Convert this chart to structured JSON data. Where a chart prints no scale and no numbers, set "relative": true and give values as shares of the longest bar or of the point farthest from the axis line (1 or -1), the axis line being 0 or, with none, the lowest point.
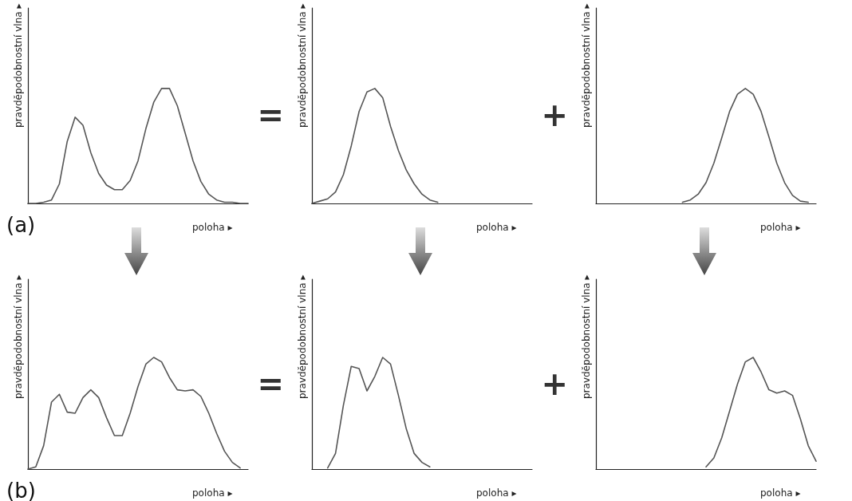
{
  "chart_data": [
    {
      "type": "line",
      "relative": true,
      "xlabel": "poloha ▸",
      "ylabel": "pravděpodobnostní vlna ▸",
      "annotations": [
        "=",
        "(a)"
      ],
      "grid": false,
      "marker": "none",
      "line_style": "solid",
      "categories": [
        null,
        null,
        null,
        null,
        null,
        null,
        null,
        null,
        null,
        null,
        null,
        null,
        null,
        null,
        null,
        null,
        null,
        null,
        null,
        null,
        null,
        null,
        null,
        null,
        null,
        null,
        null,
        null,
        null
      ],
      "series": [
        {
          "color": "#555555",
          "values": [
            0,
            0,
            0.01,
            0.03,
            0.17,
            0.54,
            0.75,
            0.68,
            0.44,
            0.26,
            0.16,
            0.12,
            0.12,
            0.2,
            0.37,
            0.65,
            0.88,
            1,
            1,
            0.85,
            0.61,
            0.37,
            0.19,
            0.08,
            0.03,
            0.01,
            0.01,
            0,
            0
          ]
        }
      ]
    },
    {
      "type": "line",
      "relative": true,
      "xlabel": "poloha ▸",
      "ylabel": "pravděpodobnostní vlna ▸",
      "annotations": [
        "+"
      ],
      "grid": false,
      "marker": "none",
      "line_style": "solid",
      "categories": [
        null,
        null,
        null,
        null,
        null,
        null,
        null,
        null,
        null,
        null,
        null,
        null,
        null,
        null,
        null,
        null,
        null,
        null,
        null,
        null,
        null,
        null,
        null,
        null,
        null,
        null,
        null,
        null,
        null
      ],
      "series": [
        {
          "color": "#555555",
          "values": [
            0,
            0.02,
            0.04,
            0.1,
            0.25,
            0.5,
            0.8,
            0.97,
            1,
            0.92,
            0.67,
            0.46,
            0.29,
            0.17,
            0.08,
            0.03,
            0.01,
            null,
            null,
            null,
            null,
            null,
            null,
            null,
            null,
            null,
            null,
            null,
            null
          ]
        }
      ]
    },
    {
      "type": "line",
      "relative": true,
      "xlabel": "poloha ▸",
      "ylabel": "pravděpodobnostní vlna ▸",
      "grid": false,
      "marker": "none",
      "line_style": "solid",
      "categories": [
        null,
        null,
        null,
        null,
        null,
        null,
        null,
        null,
        null,
        null,
        null,
        null,
        null,
        null,
        null,
        null,
        null,
        null,
        null,
        null,
        null,
        null,
        null,
        null,
        null,
        null,
        null,
        null,
        null
      ],
      "series": [
        {
          "color": "#555555",
          "values": [
            null,
            null,
            null,
            null,
            null,
            null,
            null,
            null,
            null,
            null,
            null,
            0.01,
            0.03,
            0.08,
            0.18,
            0.35,
            0.57,
            0.8,
            0.95,
            1,
            0.95,
            0.8,
            0.58,
            0.35,
            0.18,
            0.07,
            0.02,
            0.01,
            null
          ]
        }
      ]
    },
    {
      "type": "line",
      "relative": true,
      "xlabel": "poloha ▸",
      "ylabel": "pravděpodobnostní vlna ▸",
      "annotations": [
        "=",
        "(b)"
      ],
      "grid": false,
      "marker": "none",
      "line_style": "solid",
      "categories": [
        null,
        null,
        null,
        null,
        null,
        null,
        null,
        null,
        null,
        null,
        null,
        null,
        null,
        null,
        null,
        null,
        null,
        null,
        null,
        null,
        null,
        null,
        null,
        null,
        null,
        null,
        null,
        null,
        null
      ],
      "series": [
        {
          "color": "#555555",
          "values": [
            0,
            0.02,
            0.21,
            0.6,
            0.67,
            0.51,
            0.5,
            0.64,
            0.71,
            0.64,
            0.46,
            0.3,
            0.3,
            0.5,
            0.74,
            0.94,
            1,
            0.96,
            0.82,
            0.71,
            0.7,
            0.71,
            0.65,
            0.5,
            0.32,
            0.16,
            0.06,
            0.01,
            null
          ]
        }
      ]
    },
    {
      "type": "line",
      "relative": true,
      "xlabel": "poloha ▸",
      "ylabel": "pravděpodobnostní vlna ▸",
      "annotations": [
        "+"
      ],
      "grid": false,
      "marker": "none",
      "line_style": "solid",
      "categories": [
        null,
        null,
        null,
        null,
        null,
        null,
        null,
        null,
        null,
        null,
        null,
        null,
        null,
        null,
        null,
        null,
        null,
        null,
        null,
        null,
        null,
        null,
        null,
        null,
        null,
        null,
        null,
        null,
        null
      ],
      "series": [
        {
          "color": "#555555",
          "values": [
            null,
            null,
            0.01,
            0.14,
            0.57,
            0.92,
            0.9,
            0.7,
            0.83,
            1,
            0.94,
            0.66,
            0.36,
            0.14,
            0.06,
            0.02,
            null,
            null,
            null,
            null,
            null,
            null,
            null,
            null,
            null,
            null,
            null,
            null,
            null
          ]
        }
      ]
    },
    {
      "type": "line",
      "relative": true,
      "xlabel": "poloha ▸",
      "ylabel": "pravděpodobnostní vlna ▸",
      "grid": false,
      "marker": "none",
      "line_style": "solid",
      "categories": [
        null,
        null,
        null,
        null,
        null,
        null,
        null,
        null,
        null,
        null,
        null,
        null,
        null,
        null,
        null,
        null,
        null,
        null,
        null,
        null,
        null,
        null,
        null,
        null,
        null,
        null,
        null,
        null,
        null
      ],
      "series": [
        {
          "color": "#555555",
          "values": [
            null,
            null,
            null,
            null,
            null,
            null,
            null,
            null,
            null,
            null,
            null,
            null,
            null,
            null,
            0.02,
            0.1,
            0.28,
            0.52,
            0.76,
            0.96,
            1,
            0.87,
            0.71,
            0.68,
            0.7,
            0.66,
            0.45,
            0.21,
            0.07
          ]
        }
      ]
    }
  ]
}
